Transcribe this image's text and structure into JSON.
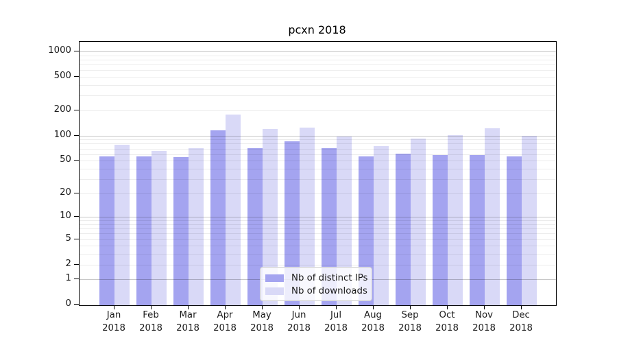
{
  "chart_data": {
    "type": "bar",
    "title": "pcxn 2018",
    "categories": [
      "Jan",
      "Feb",
      "Mar",
      "Apr",
      "May",
      "Jun",
      "Jul",
      "Aug",
      "Sep",
      "Oct",
      "Nov",
      "Dec"
    ],
    "x_sub_label": "2018",
    "series": [
      {
        "name": "Nb of distinct IPs",
        "color": "#a4a4f0",
        "values": [
          56,
          56,
          55,
          116,
          71,
          85,
          71,
          56,
          61,
          58,
          59,
          56
        ]
      },
      {
        "name": "Nb of downloads",
        "color": "#d9d9f7",
        "values": [
          77,
          66,
          71,
          179,
          120,
          125,
          98,
          75,
          92,
          102,
          123,
          99
        ]
      }
    ],
    "yaxis": {
      "scale": "log1p",
      "tick_values": [
        0,
        1,
        2,
        5,
        10,
        20,
        50,
        100,
        200,
        500,
        1000
      ],
      "tick_labels": [
        "0",
        "1",
        "2",
        "5",
        "10",
        "20",
        "50",
        "100",
        "200",
        "500",
        "1000"
      ],
      "minor_grid_values": [
        2,
        3,
        4,
        5,
        6,
        7,
        8,
        9,
        20,
        30,
        40,
        50,
        60,
        70,
        80,
        90,
        200,
        300,
        400,
        500,
        600,
        700,
        800,
        900
      ],
      "major_grid_values": [
        1,
        10,
        100,
        1000
      ],
      "ylim": [
        0,
        1300
      ]
    },
    "xlabel": "",
    "ylabel": "",
    "grid": true,
    "legend_position": "lower center"
  },
  "style": {
    "major_grid_color": "rgba(0,0,0,0.22)",
    "minor_grid_color": "rgba(0,0,0,0.075)"
  }
}
